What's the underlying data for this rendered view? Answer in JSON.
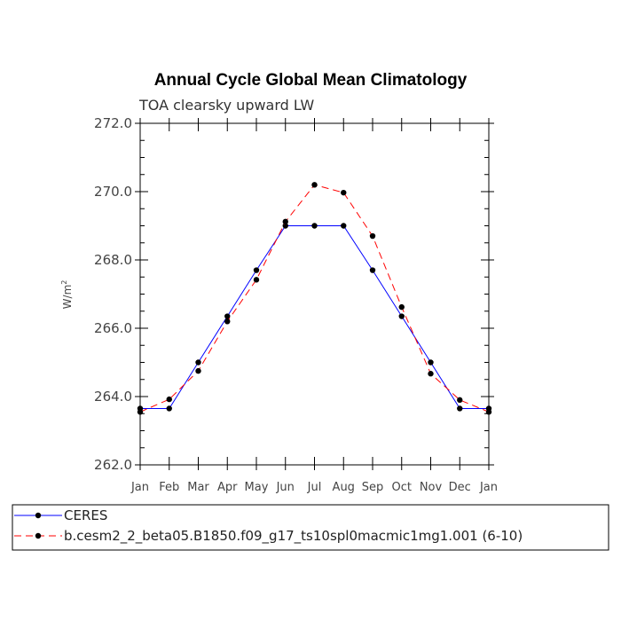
{
  "chart_data": {
    "type": "line",
    "title": "Annual Cycle Global Mean Climatology",
    "subtitle": "TOA clearsky upward LW",
    "ylabel": "W/m",
    "ylabel_sup": "2",
    "ylim": [
      262.0,
      272.0
    ],
    "yticks": [
      262.0,
      264.0,
      266.0,
      268.0,
      270.0,
      272.0
    ],
    "ytick_labels": [
      "262.0",
      "264.0",
      "266.0",
      "268.0",
      "270.0",
      "272.0"
    ],
    "categories": [
      "Jan",
      "Feb",
      "Mar",
      "Apr",
      "May",
      "Jun",
      "Jul",
      "Aug",
      "Sep",
      "Oct",
      "Nov",
      "Dec",
      "Jan"
    ],
    "series": [
      {
        "name": "CERES",
        "color": "#0000ff",
        "dash": "solid",
        "values": [
          263.65,
          263.65,
          265.0,
          266.35,
          267.7,
          269.0,
          269.0,
          269.0,
          267.7,
          266.35,
          265.0,
          263.65,
          263.65
        ]
      },
      {
        "name": "b.cesm2_2_beta05.B1850.f09_g17_ts10spl0macmic1mg1.001 (6-10)",
        "color": "#ff0000",
        "dash": "dashed",
        "values": [
          263.55,
          263.92,
          264.75,
          266.2,
          267.42,
          269.12,
          270.2,
          269.97,
          268.7,
          266.62,
          264.67,
          263.9,
          263.55
        ]
      }
    ],
    "legend_position": "bottom"
  }
}
